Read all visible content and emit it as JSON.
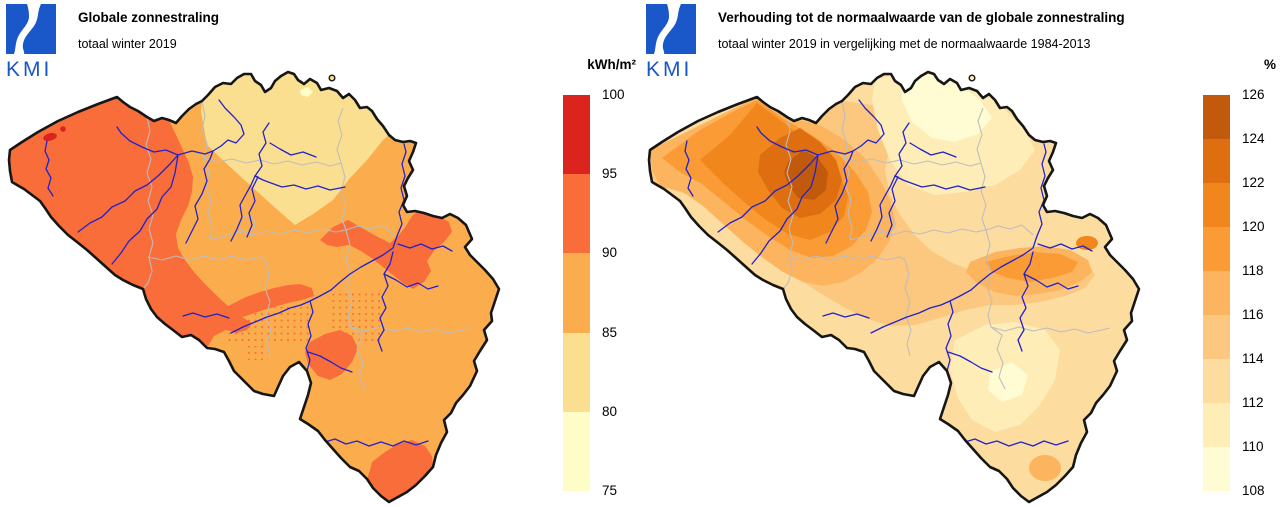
{
  "left_panel": {
    "logo_text": "KMI",
    "title": "Globale zonnestraling",
    "subtitle": "totaal winter 2019",
    "colorbar": {
      "unit": "kWh/m²",
      "tick_labels": [
        "100",
        "95",
        "90",
        "85",
        "80",
        "75"
      ],
      "colors_top_to_bottom": [
        "#DC241F",
        "#F96D3A",
        "#FBAD4E",
        "#FBDF90",
        "#FEFDC8"
      ],
      "class_ranges_top_to_bottom": [
        "95-100",
        "90-95",
        "85-90",
        "80-85",
        "75-80"
      ]
    }
  },
  "right_panel": {
    "logo_text": "KMI",
    "title": "Verhouding tot de normaalwaarde van de globale zonnestraling",
    "subtitle": "totaal winter 2019 in vergelijking met de normaalwaarde 1984-2013",
    "colorbar": {
      "unit": "%",
      "tick_labels": [
        "126",
        "124",
        "122",
        "120",
        "118",
        "116",
        "114",
        "112",
        "110",
        "108"
      ],
      "colors_top_to_bottom": [
        "#C25A0E",
        "#DF6E11",
        "#F0861C",
        "#FA9B35",
        "#FCB45F",
        "#FCC87F",
        "#FDDC9F",
        "#FEEDB7",
        "#FFFBD2"
      ],
      "class_ranges_top_to_bottom": [
        "124-126",
        "122-124",
        "120-122",
        "118-120",
        "116-118",
        "114-116",
        "112-114",
        "110-112",
        "108-110"
      ]
    }
  },
  "map_colors": {
    "country_outline": "#161616",
    "province_borders": "#BDBDBD",
    "rivers": "#2222CC",
    "logo_blue": "#1A57C8",
    "background": "#FFFFFF"
  }
}
